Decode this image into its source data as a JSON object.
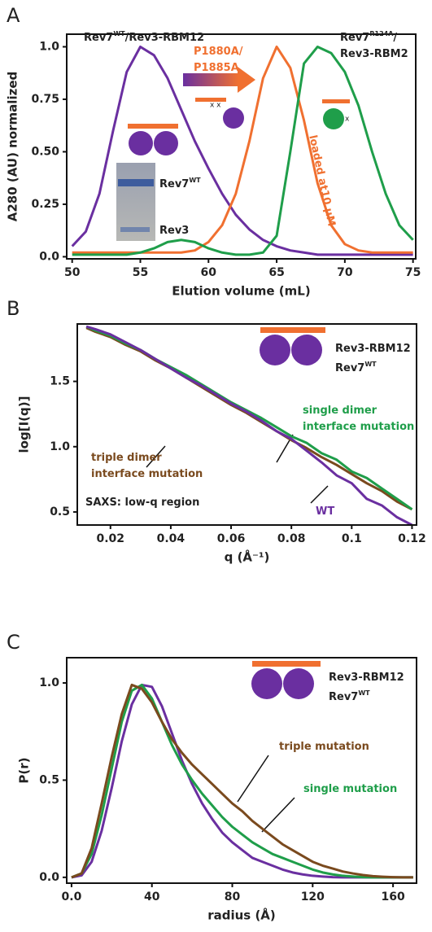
{
  "chart_data": [
    {
      "type": "line",
      "panel": "A",
      "xlabel": "Elution volume (mL)",
      "ylabel": "A280 (AU) normalized",
      "xlim": [
        49.6,
        75.2
      ],
      "ylim": [
        -0.01,
        1.06
      ],
      "xticks": [
        50,
        55,
        60,
        65,
        70,
        75
      ],
      "yticks": [
        {
          "value": 0,
          "label": "0.0"
        },
        0.25,
        {
          "value": 0.5,
          "label": "0.50"
        },
        0.75,
        {
          "value": 1,
          "label": "1.0"
        }
      ],
      "series": [
        {
          "color": "#6a2fa0",
          "x": [
            50,
            51,
            52,
            53,
            54,
            55,
            56,
            57,
            58,
            59,
            60,
            61,
            62,
            63,
            64,
            65,
            66,
            67,
            68,
            69,
            70,
            71,
            72,
            73,
            74,
            75
          ],
          "values": [
            0.05,
            0.12,
            0.3,
            0.6,
            0.88,
            1.0,
            0.96,
            0.85,
            0.7,
            0.55,
            0.42,
            0.3,
            0.2,
            0.13,
            0.08,
            0.05,
            0.03,
            0.02,
            0.01,
            0.01,
            0.01,
            0.01,
            0.01,
            0.01,
            0.01,
            0.01
          ]
        },
        {
          "color": "#f07030",
          "x": [
            50,
            51,
            52,
            53,
            54,
            55,
            56,
            57,
            58,
            59,
            60,
            61,
            62,
            63,
            64,
            65,
            66,
            67,
            68,
            69,
            70,
            71,
            72,
            73,
            74,
            75
          ],
          "values": [
            0.02,
            0.02,
            0.02,
            0.02,
            0.02,
            0.02,
            0.02,
            0.02,
            0.02,
            0.03,
            0.07,
            0.15,
            0.3,
            0.55,
            0.85,
            1.0,
            0.9,
            0.65,
            0.35,
            0.15,
            0.06,
            0.03,
            0.02,
            0.02,
            0.02,
            0.02
          ]
        },
        {
          "color": "#1f9e4a",
          "x": [
            50,
            51,
            52,
            53,
            54,
            55,
            56,
            57,
            58,
            59,
            60,
            61,
            62,
            63,
            64,
            65,
            66,
            67,
            68,
            69,
            70,
            71,
            72,
            73,
            74,
            75
          ],
          "values": [
            0.01,
            0.01,
            0.01,
            0.01,
            0.01,
            0.02,
            0.04,
            0.07,
            0.08,
            0.07,
            0.04,
            0.02,
            0.01,
            0.01,
            0.02,
            0.1,
            0.5,
            0.92,
            1.0,
            0.97,
            0.88,
            0.72,
            0.5,
            0.3,
            0.15,
            0.08
          ]
        }
      ],
      "annotations": [
        {
          "color": "#222",
          "lines": [
            [
              "Rev7",
              {
                "sup": "WT"
              },
              "/Rev3-RBM12"
            ]
          ]
        },
        {
          "color": "#f07030",
          "lines": [
            [
              "P1880A/"
            ],
            [
              "P1885A"
            ]
          ]
        },
        {
          "color": "#222",
          "lines": [
            [
              "Rev7",
              {
                "sup": "R124A"
              },
              "/"
            ],
            [
              "Rev3-RBM2"
            ]
          ]
        },
        {
          "color": "#f07030",
          "lines": [
            [
              "loaded at10 µM"
            ]
          ]
        },
        {
          "color": "#222",
          "lines": [
            [
              "Rev7",
              {
                "sup": "WT"
              }
            ]
          ]
        },
        {
          "color": "#222",
          "lines": [
            [
              "Rev3"
            ]
          ]
        }
      ]
    },
    {
      "type": "line",
      "panel": "B",
      "xlabel": "q (Å⁻¹)",
      "ylabel": "log[I(q)]",
      "xlim": [
        0.009,
        0.1215
      ],
      "ylim": [
        0.4,
        1.94
      ],
      "xticks": [
        0.02,
        0.04,
        0.06,
        0.08,
        0.1,
        0.12
      ],
      "yticks": [
        0.5,
        {
          "value": 1,
          "label": "1.0"
        },
        1.5
      ],
      "series": [
        {
          "color": "#7a4a1e",
          "x": [
            0.012,
            0.015,
            0.02,
            0.025,
            0.03,
            0.035,
            0.04,
            0.045,
            0.05,
            0.055,
            0.06,
            0.065,
            0.07,
            0.075,
            0.08,
            0.085,
            0.09,
            0.095,
            0.1,
            0.105,
            0.11,
            0.115,
            0.12
          ],
          "values": [
            1.91,
            1.88,
            1.84,
            1.78,
            1.73,
            1.66,
            1.6,
            1.53,
            1.46,
            1.39,
            1.32,
            1.26,
            1.19,
            1.12,
            1.05,
            0.99,
            0.92,
            0.86,
            0.79,
            0.72,
            0.66,
            0.58,
            0.52
          ]
        },
        {
          "color": "#1f9e4a",
          "x": [
            0.012,
            0.015,
            0.02,
            0.025,
            0.03,
            0.035,
            0.04,
            0.045,
            0.05,
            0.055,
            0.06,
            0.065,
            0.07,
            0.075,
            0.08,
            0.085,
            0.09,
            0.095,
            0.1,
            0.105,
            0.11,
            0.115,
            0.12
          ],
          "values": [
            1.92,
            1.89,
            1.85,
            1.79,
            1.74,
            1.67,
            1.61,
            1.55,
            1.48,
            1.41,
            1.34,
            1.28,
            1.22,
            1.15,
            1.08,
            1.03,
            0.95,
            0.9,
            0.81,
            0.76,
            0.68,
            0.6,
            0.52
          ]
        },
        {
          "color": "#6a2fa0",
          "x": [
            0.012,
            0.015,
            0.02,
            0.025,
            0.03,
            0.035,
            0.04,
            0.045,
            0.05,
            0.055,
            0.06,
            0.065,
            0.07,
            0.075,
            0.08,
            0.085,
            0.09,
            0.095,
            0.1,
            0.105,
            0.11,
            0.115,
            0.12
          ],
          "values": [
            1.92,
            1.9,
            1.86,
            1.8,
            1.74,
            1.67,
            1.6,
            1.53,
            1.47,
            1.4,
            1.33,
            1.27,
            1.2,
            1.12,
            1.06,
            0.97,
            0.88,
            0.78,
            0.72,
            0.6,
            0.55,
            0.46,
            0.4
          ]
        }
      ],
      "annotations": [
        {
          "color": "#222",
          "lines": [
            [
              "Rev3-RBM12"
            ]
          ]
        },
        {
          "color": "#222",
          "lines": [
            [
              "Rev7",
              {
                "sup": "WT"
              }
            ]
          ]
        },
        {
          "color": "#1f9e4a",
          "lines": [
            [
              "single dimer"
            ],
            [
              "interface mutation"
            ]
          ]
        },
        {
          "color": "#7a4a1e",
          "lines": [
            [
              "triple dimer"
            ],
            [
              "interface mutation"
            ]
          ]
        },
        {
          "color": "#6a2fa0",
          "lines": [
            [
              "WT"
            ]
          ]
        },
        {
          "color": "#222",
          "lines": [
            [
              "SAXS: low-q region"
            ]
          ]
        }
      ]
    },
    {
      "type": "line",
      "panel": "C",
      "xlabel": "radius (Å)",
      "ylabel": "P(r)",
      "xlim": [
        -2.4,
        171.7
      ],
      "ylim": [
        -0.03,
        1.13
      ],
      "xticks": [
        {
          "value": 0,
          "label": "0.0"
        },
        40,
        80,
        120,
        160
      ],
      "yticks": [
        {
          "value": 0,
          "label": "0.0"
        },
        0.5,
        {
          "value": 1,
          "label": "1.0"
        }
      ],
      "series": [
        {
          "color": "#6a2fa0",
          "x": [
            0,
            5,
            10,
            15,
            20,
            25,
            30,
            35,
            40,
            45,
            50,
            55,
            60,
            65,
            70,
            75,
            80,
            85,
            90,
            95,
            100,
            105,
            110,
            115,
            120,
            125,
            130,
            135,
            140,
            145,
            150,
            155,
            160,
            165,
            170
          ],
          "values": [
            0,
            0.01,
            0.08,
            0.24,
            0.46,
            0.7,
            0.89,
            0.99,
            0.98,
            0.88,
            0.74,
            0.6,
            0.48,
            0.38,
            0.3,
            0.23,
            0.18,
            0.14,
            0.1,
            0.08,
            0.06,
            0.04,
            0.025,
            0.015,
            0.008,
            0.004,
            0.001,
            0,
            0,
            0,
            0,
            0,
            0,
            0,
            0
          ]
        },
        {
          "color": "#1f9e4a",
          "x": [
            0,
            5,
            10,
            15,
            20,
            25,
            30,
            35,
            40,
            45,
            50,
            55,
            60,
            65,
            70,
            75,
            80,
            85,
            90,
            95,
            100,
            105,
            110,
            115,
            120,
            125,
            130,
            135,
            140,
            145,
            150,
            155,
            160,
            165,
            170
          ],
          "values": [
            0,
            0.02,
            0.12,
            0.32,
            0.56,
            0.8,
            0.96,
            0.99,
            0.92,
            0.8,
            0.68,
            0.58,
            0.5,
            0.43,
            0.37,
            0.31,
            0.26,
            0.22,
            0.18,
            0.15,
            0.12,
            0.1,
            0.08,
            0.06,
            0.04,
            0.025,
            0.015,
            0.008,
            0.004,
            0.001,
            0,
            0,
            0,
            0,
            0
          ]
        },
        {
          "color": "#7a4a1e",
          "x": [
            0,
            5,
            10,
            15,
            20,
            25,
            30,
            35,
            40,
            45,
            50,
            55,
            60,
            65,
            70,
            75,
            80,
            85,
            90,
            95,
            100,
            105,
            110,
            115,
            120,
            125,
            130,
            135,
            140,
            145,
            150,
            155,
            160,
            165,
            170
          ],
          "values": [
            0,
            0.02,
            0.15,
            0.38,
            0.62,
            0.84,
            0.99,
            0.97,
            0.9,
            0.8,
            0.71,
            0.64,
            0.58,
            0.53,
            0.48,
            0.43,
            0.38,
            0.34,
            0.29,
            0.25,
            0.21,
            0.17,
            0.14,
            0.11,
            0.08,
            0.06,
            0.045,
            0.03,
            0.02,
            0.012,
            0.006,
            0.003,
            0.001,
            0,
            0
          ]
        }
      ],
      "annotations": [
        {
          "color": "#222",
          "lines": [
            [
              "Rev3-RBM12"
            ]
          ]
        },
        {
          "color": "#222",
          "lines": [
            [
              "Rev7",
              {
                "sup": "WT"
              }
            ]
          ]
        },
        {
          "color": "#7a4a1e",
          "lines": [
            [
              "triple mutation"
            ]
          ]
        },
        {
          "color": "#1f9e4a",
          "lines": [
            [
              "single mutation"
            ]
          ]
        }
      ]
    }
  ]
}
